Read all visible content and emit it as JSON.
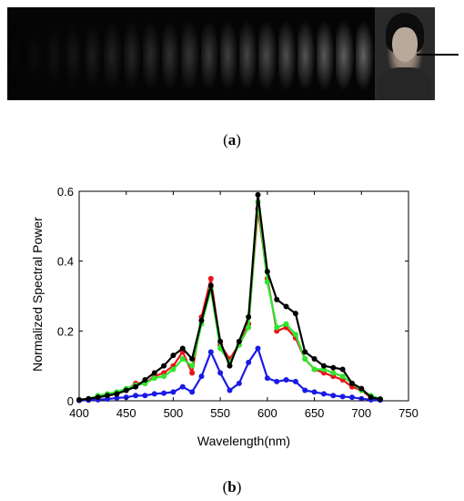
{
  "figure_a": {
    "caption_prefix": "(",
    "caption_label": "a",
    "caption_suffix": ")",
    "frames": 20
  },
  "figure_b": {
    "caption_prefix": "(",
    "caption_label": "b",
    "caption_suffix": ")"
  },
  "chart_data": {
    "type": "line",
    "xlabel": "Wavelength(nm)",
    "ylabel": "Normalized Spectral Power",
    "xlim": [
      400,
      750
    ],
    "ylim": [
      0,
      0.6
    ],
    "x_ticks": [
      400,
      450,
      500,
      550,
      600,
      650,
      700,
      750
    ],
    "y_ticks": [
      0,
      0.2,
      0.4,
      0.6
    ],
    "grid": false,
    "x": [
      400,
      410,
      420,
      430,
      440,
      450,
      460,
      470,
      480,
      490,
      500,
      510,
      520,
      530,
      540,
      550,
      560,
      570,
      580,
      590,
      600,
      610,
      620,
      630,
      640,
      650,
      660,
      670,
      680,
      690,
      700,
      710,
      720
    ],
    "series": [
      {
        "color": "#e8141a",
        "values": [
          0.002,
          0.005,
          0.01,
          0.015,
          0.02,
          0.03,
          0.05,
          0.05,
          0.07,
          0.08,
          0.1,
          0.14,
          0.08,
          0.24,
          0.35,
          0.16,
          0.12,
          0.16,
          0.22,
          0.55,
          0.35,
          0.2,
          0.21,
          0.18,
          0.12,
          0.09,
          0.08,
          0.07,
          0.06,
          0.04,
          0.03,
          0.01,
          0.005
        ]
      },
      {
        "color": "#2ee62e",
        "values": [
          0.002,
          0.005,
          0.015,
          0.02,
          0.025,
          0.035,
          0.045,
          0.05,
          0.065,
          0.07,
          0.09,
          0.12,
          0.1,
          0.22,
          0.32,
          0.15,
          0.11,
          0.16,
          0.21,
          0.57,
          0.34,
          0.21,
          0.22,
          0.19,
          0.12,
          0.09,
          0.09,
          0.08,
          0.07,
          0.05,
          0.03,
          0.015,
          0.005
        ]
      },
      {
        "color": "#1a1ae6",
        "values": [
          0.001,
          0.002,
          0.003,
          0.005,
          0.008,
          0.01,
          0.015,
          0.015,
          0.02,
          0.022,
          0.025,
          0.04,
          0.025,
          0.07,
          0.14,
          0.08,
          0.03,
          0.05,
          0.11,
          0.15,
          0.065,
          0.055,
          0.06,
          0.055,
          0.03,
          0.025,
          0.02,
          0.015,
          0.012,
          0.01,
          0.006,
          0.003,
          0.002
        ]
      },
      {
        "color": "#000000",
        "values": [
          0.003,
          0.006,
          0.01,
          0.015,
          0.02,
          0.03,
          0.04,
          0.06,
          0.08,
          0.1,
          0.13,
          0.15,
          0.12,
          0.23,
          0.33,
          0.17,
          0.1,
          0.17,
          0.24,
          0.59,
          0.37,
          0.29,
          0.27,
          0.25,
          0.14,
          0.12,
          0.1,
          0.095,
          0.09,
          0.05,
          0.035,
          0.01,
          0.005
        ]
      }
    ]
  }
}
